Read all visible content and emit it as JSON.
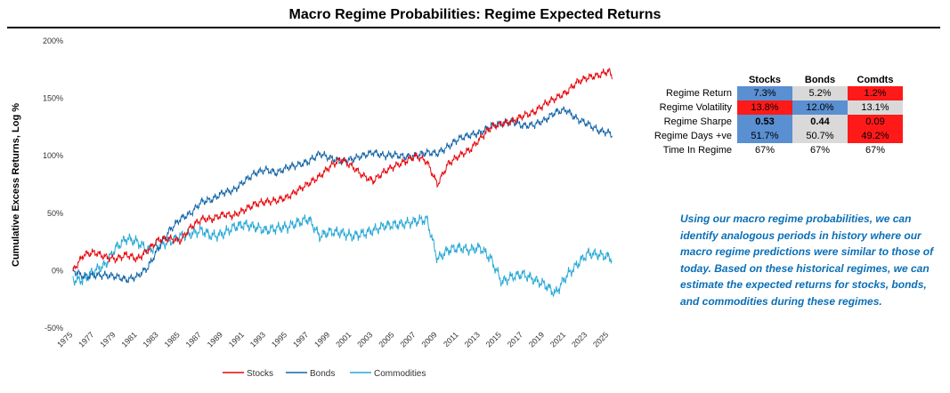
{
  "title": "Macro Regime Probabilities: Regime Expected Returns",
  "chart_data": {
    "type": "line",
    "title": "Macro Regime Probabilities: Regime Expected Returns",
    "ylabel": "Cumulative Excess Returns, Log %",
    "xlabel": "",
    "xlim": [
      1975,
      2025.5
    ],
    "ylim": [
      -50,
      200
    ],
    "ytick_values": [
      -50,
      0,
      50,
      100,
      150,
      200
    ],
    "ytick_labels": [
      "-50%",
      "0%",
      "50%",
      "100%",
      "150%",
      "200%"
    ],
    "xtick_labels": [
      "1975",
      "1977",
      "1979",
      "1981",
      "1983",
      "1985",
      "1987",
      "1989",
      "1991",
      "1993",
      "1995",
      "1997",
      "1999",
      "2001",
      "2003",
      "2005",
      "2007",
      "2009",
      "2011",
      "2013",
      "2015",
      "2017",
      "2019",
      "2021",
      "2023",
      "2025"
    ],
    "grid": false,
    "legend_position": "bottom",
    "series": [
      {
        "name": "Stocks",
        "color": "#e8070d",
        "points": [
          [
            1975,
            0
          ],
          [
            1976,
            14
          ],
          [
            1977,
            16
          ],
          [
            1978,
            12
          ],
          [
            1979,
            10
          ],
          [
            1980,
            14
          ],
          [
            1981,
            10
          ],
          [
            1982,
            18
          ],
          [
            1983,
            27
          ],
          [
            1984,
            28
          ],
          [
            1985,
            26
          ],
          [
            1986,
            38
          ],
          [
            1987,
            45
          ],
          [
            1988,
            45
          ],
          [
            1989,
            49
          ],
          [
            1990,
            48
          ],
          [
            1991,
            53
          ],
          [
            1992,
            58
          ],
          [
            1993,
            60
          ],
          [
            1994,
            61
          ],
          [
            1995,
            64
          ],
          [
            1996,
            70
          ],
          [
            1997,
            76
          ],
          [
            1998,
            82
          ],
          [
            1999,
            91
          ],
          [
            2000,
            97
          ],
          [
            2001,
            91
          ],
          [
            2002,
            83
          ],
          [
            2003,
            78
          ],
          [
            2004,
            86
          ],
          [
            2005,
            91
          ],
          [
            2006,
            95
          ],
          [
            2007,
            100
          ],
          [
            2008,
            95
          ],
          [
            2009,
            75
          ],
          [
            2010,
            93
          ],
          [
            2011,
            100
          ],
          [
            2012,
            105
          ],
          [
            2013,
            115
          ],
          [
            2014,
            125
          ],
          [
            2015,
            128
          ],
          [
            2016,
            130
          ],
          [
            2017,
            135
          ],
          [
            2018,
            138
          ],
          [
            2019,
            145
          ],
          [
            2020,
            150
          ],
          [
            2021,
            155
          ],
          [
            2022,
            164
          ],
          [
            2023,
            168
          ],
          [
            2024,
            170
          ],
          [
            2025,
            174
          ],
          [
            2025.3,
            168
          ]
        ]
      },
      {
        "name": "Bonds",
        "color": "#1565a8",
        "points": [
          [
            1975,
            0
          ],
          [
            1976,
            -5
          ],
          [
            1977,
            -4
          ],
          [
            1978,
            -4
          ],
          [
            1979,
            -5
          ],
          [
            1980,
            -8
          ],
          [
            1981,
            -5
          ],
          [
            1982,
            3
          ],
          [
            1983,
            20
          ],
          [
            1984,
            35
          ],
          [
            1985,
            45
          ],
          [
            1986,
            50
          ],
          [
            1987,
            60
          ],
          [
            1988,
            62
          ],
          [
            1989,
            68
          ],
          [
            1990,
            70
          ],
          [
            1991,
            78
          ],
          [
            1992,
            85
          ],
          [
            1993,
            88
          ],
          [
            1994,
            85
          ],
          [
            1995,
            90
          ],
          [
            1996,
            92
          ],
          [
            1997,
            95
          ],
          [
            1998,
            102
          ],
          [
            1999,
            98
          ],
          [
            2000,
            95
          ],
          [
            2001,
            97
          ],
          [
            2002,
            100
          ],
          [
            2003,
            103
          ],
          [
            2004,
            100
          ],
          [
            2005,
            101
          ],
          [
            2006,
            99
          ],
          [
            2007,
            100
          ],
          [
            2008,
            103
          ],
          [
            2009,
            102
          ],
          [
            2010,
            108
          ],
          [
            2011,
            115
          ],
          [
            2012,
            118
          ],
          [
            2013,
            120
          ],
          [
            2014,
            126
          ],
          [
            2015,
            128
          ],
          [
            2016,
            130
          ],
          [
            2017,
            126
          ],
          [
            2018,
            127
          ],
          [
            2019,
            131
          ],
          [
            2020,
            138
          ],
          [
            2021,
            140
          ],
          [
            2022,
            132
          ],
          [
            2023,
            128
          ],
          [
            2024,
            122
          ],
          [
            2025,
            120
          ],
          [
            2025.3,
            118
          ]
        ]
      },
      {
        "name": "Commodities",
        "color": "#29a9d6",
        "points": [
          [
            1975,
            -8
          ],
          [
            1976,
            -8
          ],
          [
            1977,
            0
          ],
          [
            1978,
            5
          ],
          [
            1979,
            20
          ],
          [
            1980,
            28
          ],
          [
            1981,
            25
          ],
          [
            1982,
            18
          ],
          [
            1983,
            22
          ],
          [
            1984,
            25
          ],
          [
            1985,
            30
          ],
          [
            1986,
            32
          ],
          [
            1987,
            35
          ],
          [
            1988,
            30
          ],
          [
            1989,
            32
          ],
          [
            1990,
            38
          ],
          [
            1991,
            40
          ],
          [
            1992,
            38
          ],
          [
            1993,
            35
          ],
          [
            1994,
            37
          ],
          [
            1995,
            38
          ],
          [
            1996,
            42
          ],
          [
            1997,
            45
          ],
          [
            1998,
            30
          ],
          [
            1999,
            34
          ],
          [
            2000,
            33
          ],
          [
            2001,
            30
          ],
          [
            2002,
            32
          ],
          [
            2003,
            35
          ],
          [
            2004,
            39
          ],
          [
            2005,
            40
          ],
          [
            2006,
            41
          ],
          [
            2007,
            43
          ],
          [
            2008,
            45
          ],
          [
            2009,
            10
          ],
          [
            2010,
            18
          ],
          [
            2011,
            20
          ],
          [
            2012,
            18
          ],
          [
            2013,
            20
          ],
          [
            2014,
            10
          ],
          [
            2015,
            -10
          ],
          [
            2016,
            -5
          ],
          [
            2017,
            -3
          ],
          [
            2018,
            -8
          ],
          [
            2019,
            -12
          ],
          [
            2020,
            -20
          ],
          [
            2021,
            -5
          ],
          [
            2022,
            5
          ],
          [
            2023,
            15
          ],
          [
            2024,
            14
          ],
          [
            2025,
            12
          ],
          [
            2025.3,
            10
          ]
        ]
      }
    ]
  },
  "table": {
    "columns": [
      "Stocks",
      "Bonds",
      "Comdts"
    ],
    "rows": [
      {
        "label": "Regime Return",
        "cells": [
          "7.3%",
          "5.2%",
          "1.2%"
        ]
      },
      {
        "label": "Regime Volatility",
        "cells": [
          "13.8%",
          "12.0%",
          "13.1%"
        ]
      },
      {
        "label": "Regime Sharpe",
        "cells": [
          "0.53",
          "0.44",
          "0.09"
        ]
      },
      {
        "label": "Regime Days +ve",
        "cells": [
          "51.7%",
          "50.7%",
          "49.2%"
        ]
      },
      {
        "label": "Time In Regime",
        "cells": [
          "67%",
          "67%",
          "67%"
        ]
      }
    ],
    "cell_colors": [
      [
        "#5a8fd1",
        "#d9d9d9",
        "#ff1a1a"
      ],
      [
        "#ff1a1a",
        "#5a8fd1",
        "#d9d9d9"
      ],
      [
        "#5a8fd1",
        "#d9d9d9",
        "#ff1a1a"
      ],
      [
        "#5a8fd1",
        "#d9d9d9",
        "#ff1a1a"
      ],
      [
        "#ffffff",
        "#ffffff",
        "#ffffff"
      ]
    ]
  },
  "note": "Using our macro regime probabilities, we can identify analogous periods in history where our macro regime predictions were similar to those of today. Based on these historical regimes, we can estimate the expected returns for stocks, bonds, and commodities during these regimes."
}
